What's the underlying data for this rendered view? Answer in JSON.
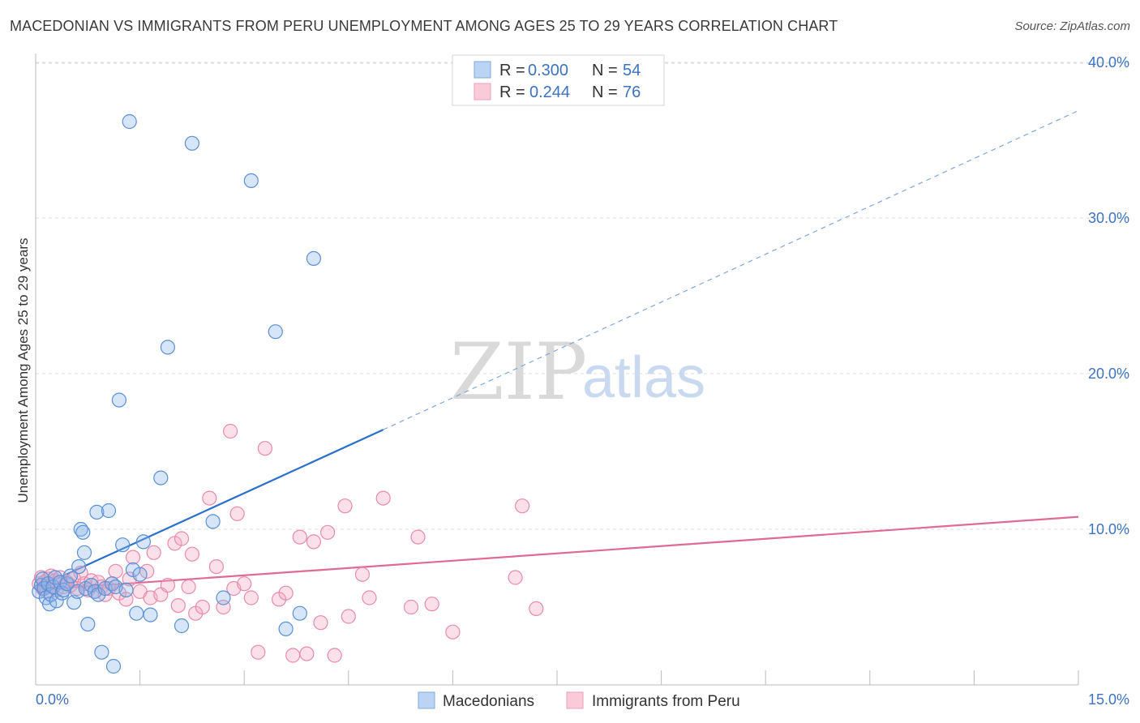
{
  "header": {
    "title": "MACEDONIAN VS IMMIGRANTS FROM PERU UNEMPLOYMENT AMONG AGES 25 TO 29 YEARS CORRELATION CHART",
    "source": "Source: ZipAtlas.com"
  },
  "watermark": {
    "zip": "ZIP",
    "atlas": "atlas"
  },
  "legend": {
    "r_label": "R =",
    "n_label": "N =",
    "series": [
      {
        "r": "0.300",
        "n": "54"
      },
      {
        "r": "0.244",
        "n": "76"
      }
    ]
  },
  "chart_data": {
    "type": "scatter",
    "title": "MACEDONIAN VS IMMIGRANTS FROM PERU UNEMPLOYMENT AMONG AGES 25 TO 29 YEARS CORRELATION CHART",
    "xlabel": "",
    "ylabel": "Unemployment Among Ages 25 to 29 years",
    "xlim": [
      0,
      15
    ],
    "ylim": [
      0,
      40
    ],
    "x_tick_labels": [
      "0.0%",
      "15.0%"
    ],
    "y_ticks": [
      10,
      20,
      30,
      40
    ],
    "y_tick_labels": [
      "10.0%",
      "20.0%",
      "30.0%",
      "40.0%"
    ],
    "grid": true,
    "colors": {
      "blue": "#8ab4e8",
      "blue_line": "#2b6fcc",
      "pink": "#f4a7bf",
      "pink_line": "#e06a95"
    },
    "series": [
      {
        "name": "Macedonians",
        "color": "#8ab4e8",
        "trend": {
          "x0": 0,
          "y0": 6.2,
          "x1": 5.0,
          "y1": 16.4,
          "extend_to": 15.0,
          "extend_y": 36.9
        },
        "points": [
          [
            0.05,
            6.0
          ],
          [
            0.08,
            6.4
          ],
          [
            0.1,
            6.8
          ],
          [
            0.12,
            6.2
          ],
          [
            0.15,
            5.6
          ],
          [
            0.18,
            6.5
          ],
          [
            0.2,
            5.2
          ],
          [
            0.22,
            5.8
          ],
          [
            0.25,
            6.3
          ],
          [
            0.28,
            6.9
          ],
          [
            0.3,
            5.4
          ],
          [
            0.35,
            6.6
          ],
          [
            0.38,
            5.9
          ],
          [
            0.4,
            6.1
          ],
          [
            0.45,
            6.5
          ],
          [
            0.5,
            7.0
          ],
          [
            0.55,
            5.3
          ],
          [
            0.6,
            6.0
          ],
          [
            0.62,
            7.6
          ],
          [
            0.65,
            10.0
          ],
          [
            0.68,
            9.8
          ],
          [
            0.7,
            8.5
          ],
          [
            0.72,
            6.2
          ],
          [
            0.75,
            3.9
          ],
          [
            0.8,
            6.4
          ],
          [
            0.85,
            6.0
          ],
          [
            0.88,
            11.1
          ],
          [
            0.9,
            5.8
          ],
          [
            0.95,
            2.1
          ],
          [
            1.0,
            6.2
          ],
          [
            1.05,
            11.2
          ],
          [
            1.1,
            6.5
          ],
          [
            1.12,
            1.2
          ],
          [
            1.15,
            6.3
          ],
          [
            1.2,
            18.3
          ],
          [
            1.25,
            9.0
          ],
          [
            1.3,
            6.1
          ],
          [
            1.35,
            36.2
          ],
          [
            1.4,
            7.4
          ],
          [
            1.45,
            4.6
          ],
          [
            1.5,
            7.1
          ],
          [
            1.55,
            9.2
          ],
          [
            1.65,
            4.5
          ],
          [
            1.8,
            13.3
          ],
          [
            1.9,
            21.7
          ],
          [
            2.1,
            3.8
          ],
          [
            2.25,
            34.8
          ],
          [
            2.55,
            10.5
          ],
          [
            2.7,
            5.6
          ],
          [
            3.1,
            32.4
          ],
          [
            3.45,
            22.7
          ],
          [
            3.6,
            3.6
          ],
          [
            3.8,
            4.6
          ],
          [
            4.0,
            27.4
          ]
        ]
      },
      {
        "name": "Immigrants from Peru",
        "color": "#f4a7bf",
        "trend": {
          "x0": 0,
          "y0": 6.1,
          "x1": 15.0,
          "y1": 10.8
        },
        "points": [
          [
            0.05,
            6.5
          ],
          [
            0.08,
            6.9
          ],
          [
            0.1,
            6.2
          ],
          [
            0.12,
            6.6
          ],
          [
            0.15,
            6.0
          ],
          [
            0.18,
            6.8
          ],
          [
            0.2,
            6.4
          ],
          [
            0.22,
            7.0
          ],
          [
            0.25,
            6.3
          ],
          [
            0.28,
            6.7
          ],
          [
            0.3,
            6.1
          ],
          [
            0.35,
            6.9
          ],
          [
            0.4,
            6.3
          ],
          [
            0.45,
            6.6
          ],
          [
            0.5,
            6.4
          ],
          [
            0.55,
            6.8
          ],
          [
            0.6,
            6.2
          ],
          [
            0.65,
            7.2
          ],
          [
            0.7,
            6.5
          ],
          [
            0.75,
            6.1
          ],
          [
            0.8,
            6.7
          ],
          [
            0.85,
            6.0
          ],
          [
            0.9,
            6.6
          ],
          [
            0.95,
            6.3
          ],
          [
            1.0,
            5.8
          ],
          [
            1.05,
            6.2
          ],
          [
            1.1,
            6.5
          ],
          [
            1.15,
            7.3
          ],
          [
            1.2,
            5.9
          ],
          [
            1.3,
            5.5
          ],
          [
            1.35,
            6.8
          ],
          [
            1.4,
            8.2
          ],
          [
            1.5,
            6.0
          ],
          [
            1.6,
            7.3
          ],
          [
            1.65,
            5.6
          ],
          [
            1.7,
            8.5
          ],
          [
            1.8,
            5.8
          ],
          [
            1.9,
            6.4
          ],
          [
            2.0,
            9.1
          ],
          [
            2.05,
            5.1
          ],
          [
            2.1,
            9.4
          ],
          [
            2.2,
            6.3
          ],
          [
            2.25,
            8.4
          ],
          [
            2.3,
            4.6
          ],
          [
            2.4,
            5.0
          ],
          [
            2.5,
            12.0
          ],
          [
            2.6,
            7.6
          ],
          [
            2.7,
            5.0
          ],
          [
            2.8,
            16.3
          ],
          [
            2.85,
            6.2
          ],
          [
            2.9,
            11.0
          ],
          [
            3.0,
            6.5
          ],
          [
            3.1,
            5.6
          ],
          [
            3.2,
            2.1
          ],
          [
            3.3,
            15.2
          ],
          [
            3.5,
            5.5
          ],
          [
            3.6,
            5.9
          ],
          [
            3.7,
            1.9
          ],
          [
            3.8,
            9.5
          ],
          [
            3.9,
            2.0
          ],
          [
            4.0,
            9.2
          ],
          [
            4.1,
            4.0
          ],
          [
            4.2,
            9.8
          ],
          [
            4.3,
            1.9
          ],
          [
            4.45,
            11.5
          ],
          [
            4.5,
            4.4
          ],
          [
            4.7,
            7.1
          ],
          [
            4.8,
            5.6
          ],
          [
            5.0,
            12.0
          ],
          [
            5.4,
            5.0
          ],
          [
            5.5,
            9.5
          ],
          [
            5.7,
            5.2
          ],
          [
            6.0,
            3.4
          ],
          [
            6.9,
            6.9
          ],
          [
            7.0,
            11.5
          ],
          [
            7.2,
            4.9
          ]
        ]
      }
    ]
  },
  "bottom_legend": {
    "items": [
      "Macedonians",
      "Immigrants from Peru"
    ]
  }
}
